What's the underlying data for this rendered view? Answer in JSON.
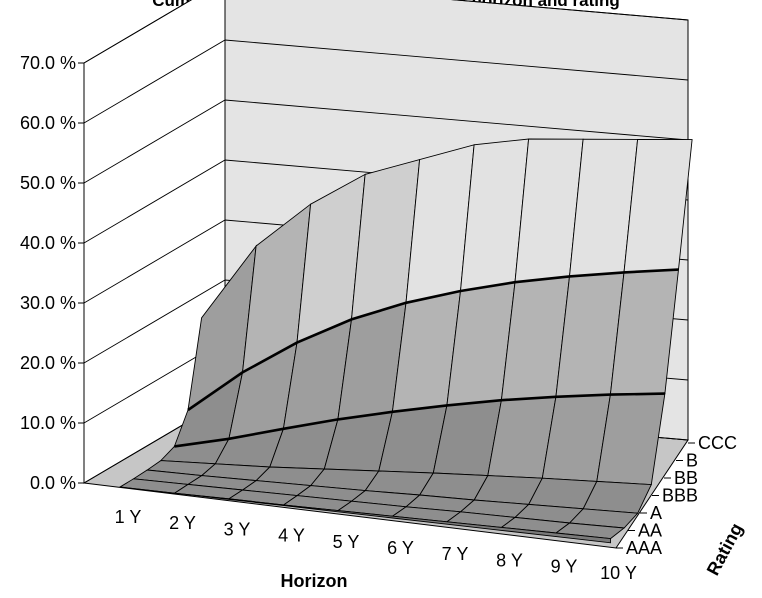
{
  "chart_data": {
    "type": "surface-3d",
    "title": "Cumulated default rate as a function of horizon and rating",
    "xlabel": "Horizon",
    "zlabel": "Rating",
    "ylim": [
      0,
      70
    ],
    "y_ticks": [
      "0.0 %",
      "10.0 %",
      "20.0 %",
      "30.0 %",
      "40.0 %",
      "50.0 %",
      "60.0 %",
      "70.0 %"
    ],
    "horizon_ticks": [
      "1 Y",
      "2 Y",
      "3 Y",
      "4 Y",
      "5 Y",
      "6 Y",
      "7 Y",
      "8 Y",
      "9 Y",
      "10 Y"
    ],
    "rating_ticks": [
      "AAA",
      "AA",
      "A",
      "BBB",
      "BB",
      "B",
      "CCC"
    ],
    "grid": true,
    "series": [
      {
        "name": "AAA",
        "values": [
          0.0,
          0.0,
          0.1,
          0.1,
          0.2,
          0.3,
          0.4,
          0.5,
          0.6,
          0.7
        ]
      },
      {
        "name": "AA",
        "values": [
          0.0,
          0.1,
          0.2,
          0.3,
          0.4,
          0.5,
          0.7,
          0.8,
          0.9,
          1.1
        ]
      },
      {
        "name": "A",
        "values": [
          0.1,
          0.2,
          0.4,
          0.6,
          0.8,
          1.1,
          1.3,
          1.6,
          1.9,
          2.2
        ]
      },
      {
        "name": "BBB",
        "values": [
          0.3,
          0.8,
          1.3,
          2.0,
          2.7,
          3.4,
          4.0,
          4.6,
          5.1,
          5.6
        ]
      },
      {
        "name": "BB",
        "values": [
          1.3,
          3.6,
          6.3,
          8.9,
          11.2,
          13.3,
          15.2,
          16.8,
          18.2,
          19.4
        ]
      },
      {
        "name": "B",
        "values": [
          6.0,
          13.3,
          19.3,
          24.2,
          28.0,
          31.0,
          33.5,
          35.5,
          37.2,
          38.7
        ]
      },
      {
        "name": "CCC",
        "values": [
          20.0,
          33.0,
          41.0,
          47.0,
          50.5,
          54.0,
          56.0,
          57.0,
          58.0,
          59.0
        ]
      }
    ]
  }
}
